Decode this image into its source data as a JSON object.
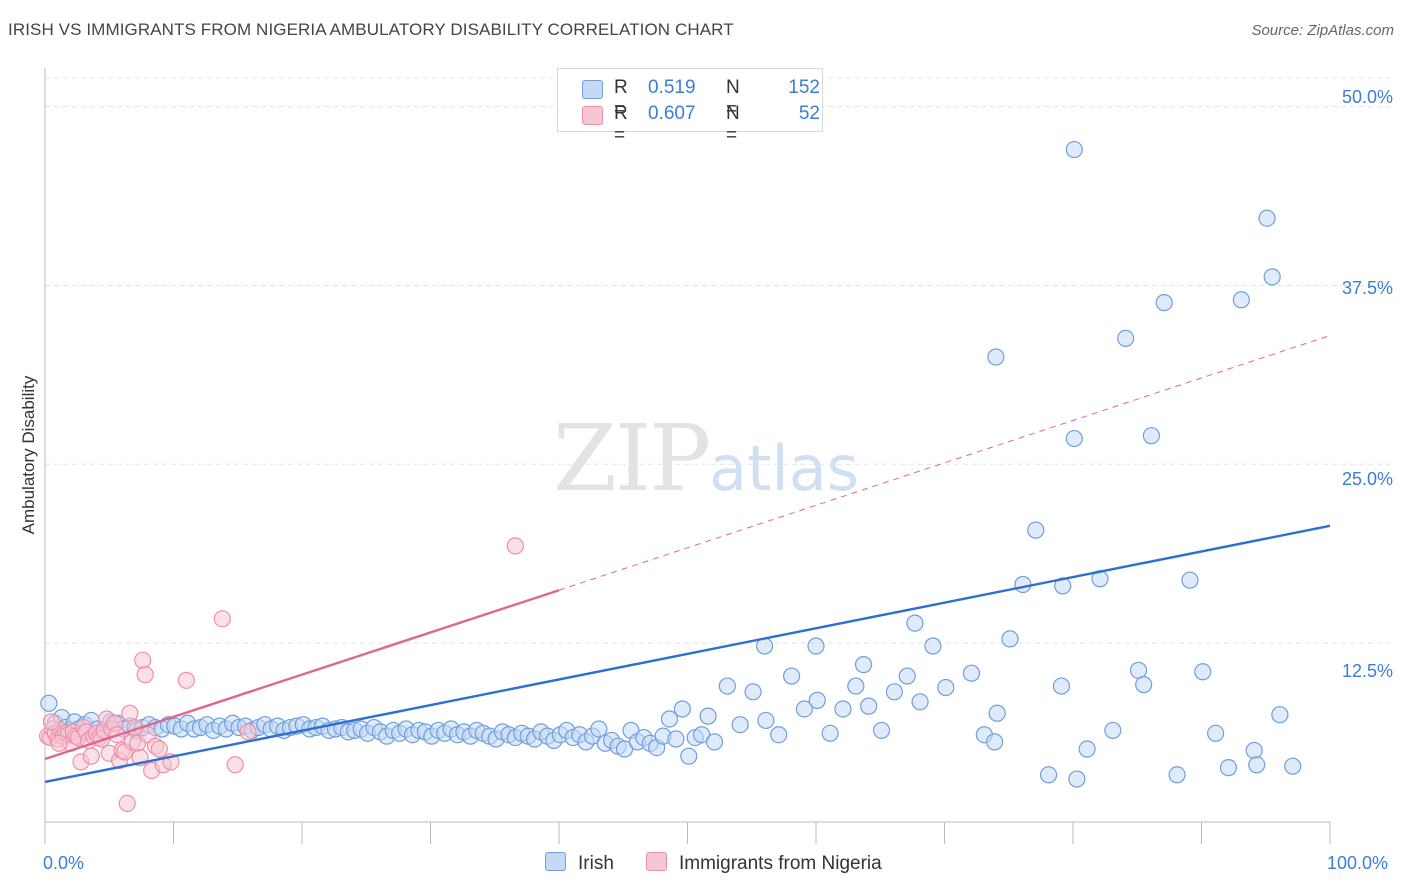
{
  "header": {
    "title": "IRISH VS IMMIGRANTS FROM NIGERIA AMBULATORY DISABILITY CORRELATION CHART",
    "source": "Source: ZipAtlas.com"
  },
  "watermark": {
    "zip": "ZIP",
    "atlas": "atlas"
  },
  "legend": {
    "r_label": "R =",
    "n_label": "N =",
    "irish": {
      "r": "0.519",
      "n": "152"
    },
    "nigeria": {
      "r": "0.607",
      "n": "52"
    }
  },
  "colors": {
    "irish_fill": "#c5d9f5",
    "irish_stroke": "#6f9fdc",
    "irish_line": "#2f6fcf",
    "nigeria_fill": "#f7c6d3",
    "nigeria_stroke": "#ee8fab",
    "nigeria_line": "#e0668e",
    "tick_text": "#3b7dd8",
    "grid": "#e4e4e4"
  },
  "chart_data": {
    "type": "scatter",
    "title": "IRISH VS IMMIGRANTS FROM NIGERIA AMBULATORY DISABILITY CORRELATION CHART",
    "xlabel": "",
    "ylabel": "Ambulatory Disability",
    "xlim": [
      0,
      100
    ],
    "ylim": [
      0,
      52
    ],
    "x_tick_labels": [
      "0.0%",
      "100.0%"
    ],
    "y_ticks": [
      12.5,
      25.0,
      37.5,
      50.0
    ],
    "y_tick_labels": [
      "12.5%",
      "25.0%",
      "37.5%",
      "50.0%"
    ],
    "grid": true,
    "legend_position": "top-center",
    "series": [
      {
        "name": "Irish",
        "r": 0.519,
        "n": 152,
        "trend": {
          "x0": 0,
          "y0": 2.8,
          "x1": 100,
          "y1": 20.7,
          "style": "solid"
        },
        "points": [
          [
            0.3,
            8.3
          ],
          [
            0.8,
            6.9
          ],
          [
            1.3,
            7.3
          ],
          [
            1.6,
            6.6
          ],
          [
            1.9,
            6.4
          ],
          [
            2.3,
            7.0
          ],
          [
            2.6,
            6.5
          ],
          [
            3.1,
            6.8
          ],
          [
            3.6,
            7.1
          ],
          [
            4.1,
            6.5
          ],
          [
            4.6,
            6.4
          ],
          [
            5.1,
            7.0
          ],
          [
            5.6,
            6.9
          ],
          [
            6.1,
            6.5
          ],
          [
            6.6,
            6.7
          ],
          [
            7.1,
            6.4
          ],
          [
            7.6,
            6.6
          ],
          [
            8.1,
            6.8
          ],
          [
            8.6,
            6.6
          ],
          [
            9.1,
            6.5
          ],
          [
            9.6,
            6.8
          ],
          [
            10.1,
            6.7
          ],
          [
            10.6,
            6.5
          ],
          [
            11.1,
            6.9
          ],
          [
            11.6,
            6.5
          ],
          [
            12.1,
            6.6
          ],
          [
            12.6,
            6.8
          ],
          [
            13.1,
            6.4
          ],
          [
            13.6,
            6.7
          ],
          [
            14.1,
            6.5
          ],
          [
            14.6,
            6.9
          ],
          [
            15.1,
            6.6
          ],
          [
            15.6,
            6.7
          ],
          [
            16.1,
            6.4
          ],
          [
            16.6,
            6.6
          ],
          [
            17.1,
            6.8
          ],
          [
            17.6,
            6.5
          ],
          [
            18.1,
            6.7
          ],
          [
            18.6,
            6.4
          ],
          [
            19.1,
            6.6
          ],
          [
            19.6,
            6.7
          ],
          [
            20.1,
            6.8
          ],
          [
            20.6,
            6.5
          ],
          [
            21.1,
            6.6
          ],
          [
            21.6,
            6.7
          ],
          [
            22.1,
            6.4
          ],
          [
            22.6,
            6.5
          ],
          [
            23.1,
            6.6
          ],
          [
            23.6,
            6.3
          ],
          [
            24.1,
            6.4
          ],
          [
            24.6,
            6.5
          ],
          [
            25.1,
            6.2
          ],
          [
            25.6,
            6.6
          ],
          [
            26.1,
            6.3
          ],
          [
            26.6,
            6.0
          ],
          [
            27.1,
            6.4
          ],
          [
            27.6,
            6.2
          ],
          [
            28.1,
            6.5
          ],
          [
            28.6,
            6.1
          ],
          [
            29.1,
            6.4
          ],
          [
            29.6,
            6.3
          ],
          [
            30.1,
            6.0
          ],
          [
            30.6,
            6.4
          ],
          [
            31.1,
            6.2
          ],
          [
            31.6,
            6.5
          ],
          [
            32.1,
            6.1
          ],
          [
            32.6,
            6.3
          ],
          [
            33.1,
            6.0
          ],
          [
            33.6,
            6.4
          ],
          [
            34.1,
            6.2
          ],
          [
            34.6,
            6.0
          ],
          [
            35.1,
            5.8
          ],
          [
            35.6,
            6.3
          ],
          [
            36.1,
            6.1
          ],
          [
            36.6,
            5.9
          ],
          [
            37.1,
            6.2
          ],
          [
            37.6,
            6.0
          ],
          [
            38.1,
            5.8
          ],
          [
            38.6,
            6.3
          ],
          [
            39.1,
            6.0
          ],
          [
            39.6,
            5.7
          ],
          [
            40.1,
            6.1
          ],
          [
            40.6,
            6.4
          ],
          [
            41.1,
            5.9
          ],
          [
            41.6,
            6.1
          ],
          [
            42.1,
            5.6
          ],
          [
            42.6,
            6.0
          ],
          [
            43.1,
            6.5
          ],
          [
            43.6,
            5.5
          ],
          [
            44.1,
            5.7
          ],
          [
            44.6,
            5.3
          ],
          [
            45.1,
            5.1
          ],
          [
            45.6,
            6.4
          ],
          [
            46.1,
            5.6
          ],
          [
            46.6,
            5.9
          ],
          [
            47.1,
            5.5
          ],
          [
            47.6,
            5.2
          ],
          [
            48.1,
            6.0
          ],
          [
            48.6,
            7.2
          ],
          [
            49.1,
            5.8
          ],
          [
            49.6,
            7.9
          ],
          [
            50.1,
            4.6
          ],
          [
            50.6,
            5.9
          ],
          [
            51.1,
            6.1
          ],
          [
            51.6,
            7.4
          ],
          [
            52.1,
            5.6
          ],
          [
            53.1,
            9.5
          ],
          [
            54.1,
            6.8
          ],
          [
            55.1,
            9.1
          ],
          [
            56.1,
            7.1
          ],
          [
            57.1,
            6.1
          ],
          [
            58.1,
            10.2
          ],
          [
            59.1,
            7.9
          ],
          [
            60.1,
            8.5
          ],
          [
            61.1,
            6.2
          ],
          [
            62.1,
            7.9
          ],
          [
            63.1,
            9.5
          ],
          [
            64.1,
            8.1
          ],
          [
            65.1,
            6.4
          ],
          [
            66.1,
            9.1
          ],
          [
            67.1,
            10.2
          ],
          [
            68.1,
            8.4
          ],
          [
            69.1,
            12.3
          ],
          [
            70.1,
            9.4
          ],
          [
            72.1,
            10.4
          ],
          [
            73.1,
            6.1
          ],
          [
            74.1,
            7.6
          ],
          [
            75.1,
            12.8
          ],
          [
            76.1,
            16.6
          ],
          [
            77.1,
            20.4
          ],
          [
            78.1,
            3.3
          ],
          [
            79.1,
            9.5
          ],
          [
            80.1,
            26.8
          ],
          [
            81.1,
            5.1
          ],
          [
            82.1,
            17.0
          ],
          [
            83.1,
            6.4
          ],
          [
            84.1,
            33.8
          ],
          [
            85.1,
            10.6
          ],
          [
            86.1,
            27.0
          ],
          [
            87.1,
            36.3
          ],
          [
            88.1,
            3.3
          ],
          [
            89.1,
            16.9
          ],
          [
            90.1,
            10.5
          ],
          [
            91.1,
            6.2
          ],
          [
            92.1,
            3.8
          ],
          [
            93.1,
            36.5
          ],
          [
            94.1,
            5.0
          ],
          [
            95.1,
            42.2
          ],
          [
            96.1,
            7.5
          ],
          [
            97.1,
            3.9
          ],
          [
            63.7,
            11.0
          ],
          [
            73.9,
            5.6
          ],
          [
            80.3,
            3.0
          ],
          [
            85.5,
            9.6
          ],
          [
            95.5,
            38.1
          ],
          [
            67.7,
            13.9
          ],
          [
            79.2,
            16.5
          ],
          [
            56.0,
            12.3
          ],
          [
            60.0,
            12.3
          ],
          [
            80.1,
            47.0
          ],
          [
            94.3,
            4.0
          ],
          [
            74.0,
            32.5
          ]
        ]
      },
      {
        "name": "Immigrants from Nigeria",
        "r": 0.607,
        "n": 52,
        "trend": {
          "x0": 0,
          "y0": 4.4,
          "x1": 40,
          "y1": 16.2,
          "style": "solid",
          "extend_to_x": 100,
          "extend_y": 34.0,
          "extend_style": "dashed"
        },
        "points": [
          [
            0.2,
            6.0
          ],
          [
            0.4,
            5.9
          ],
          [
            0.6,
            6.5
          ],
          [
            0.8,
            6.2
          ],
          [
            1.0,
            5.8
          ],
          [
            1.2,
            6.4
          ],
          [
            1.4,
            6.0
          ],
          [
            1.6,
            6.2
          ],
          [
            1.8,
            6.1
          ],
          [
            2.0,
            5.5
          ],
          [
            2.2,
            6.3
          ],
          [
            2.4,
            6.0
          ],
          [
            2.6,
            5.9
          ],
          [
            2.8,
            4.2
          ],
          [
            3.0,
            6.6
          ],
          [
            3.2,
            6.3
          ],
          [
            3.4,
            5.7
          ],
          [
            3.6,
            4.6
          ],
          [
            3.8,
            6.0
          ],
          [
            4.0,
            6.2
          ],
          [
            4.2,
            5.9
          ],
          [
            4.4,
            5.8
          ],
          [
            4.6,
            6.4
          ],
          [
            4.8,
            7.2
          ],
          [
            5.0,
            4.8
          ],
          [
            5.2,
            6.5
          ],
          [
            5.4,
            6.9
          ],
          [
            5.6,
            6.1
          ],
          [
            5.8,
            4.3
          ],
          [
            6.0,
            5.0
          ],
          [
            6.2,
            4.9
          ],
          [
            6.4,
            1.3
          ],
          [
            6.6,
            7.6
          ],
          [
            6.8,
            5.6
          ],
          [
            7.0,
            6.6
          ],
          [
            7.2,
            5.5
          ],
          [
            7.4,
            4.5
          ],
          [
            7.6,
            11.3
          ],
          [
            7.8,
            10.3
          ],
          [
            8.0,
            6.1
          ],
          [
            8.3,
            3.6
          ],
          [
            8.6,
            5.3
          ],
          [
            8.9,
            5.1
          ],
          [
            9.2,
            4.0
          ],
          [
            9.8,
            4.2
          ],
          [
            11.0,
            9.9
          ],
          [
            13.8,
            14.2
          ],
          [
            14.8,
            4.0
          ],
          [
            15.8,
            6.3
          ],
          [
            36.6,
            19.3
          ],
          [
            0.5,
            7.0
          ],
          [
            1.1,
            5.5
          ]
        ]
      }
    ]
  }
}
